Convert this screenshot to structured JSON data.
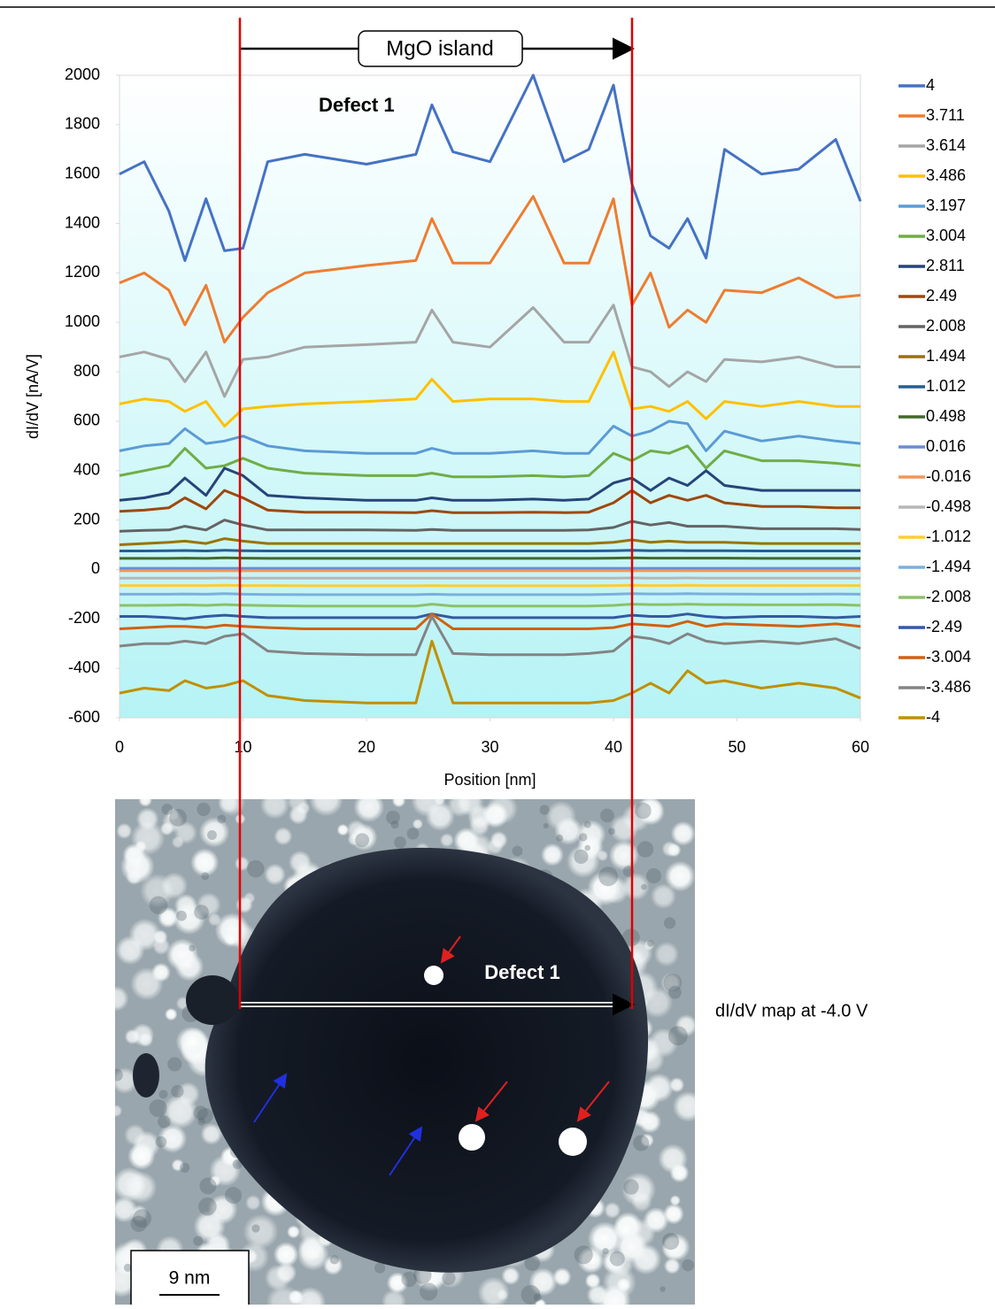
{
  "chart_data": {
    "type": "line",
    "x_label": "Position [nm]",
    "y_label": "dI/dV [nA/V]",
    "annotations": [
      "MgO island",
      "Defect 1"
    ],
    "xlim": [
      0,
      60
    ],
    "xticks": [
      0,
      10,
      20,
      30,
      40,
      50,
      60
    ],
    "ylim": [
      -600,
      2000
    ],
    "yticks": [
      -600,
      -400,
      -200,
      0,
      200,
      400,
      600,
      800,
      1000,
      1200,
      1400,
      1600,
      1800,
      2000
    ],
    "legend": "right",
    "x": [
      0,
      2,
      4,
      5.3,
      7,
      8.5,
      10,
      12,
      15,
      20,
      24,
      25.3,
      27,
      30,
      33.5,
      36,
      38,
      40,
      41.5,
      43,
      44.5,
      46,
      47.5,
      49,
      52,
      55,
      58,
      60
    ],
    "series": [
      {
        "name": "4",
        "color": "#4472c4",
        "values": [
          1600,
          1650,
          1450,
          1250,
          1500,
          1290,
          1300,
          1650,
          1680,
          1640,
          1680,
          1880,
          1690,
          1650,
          2000,
          1650,
          1700,
          1960,
          1560,
          1350,
          1300,
          1420,
          1260,
          1700,
          1600,
          1620,
          1740,
          1490
        ]
      },
      {
        "name": "3.711",
        "color": "#ed7d31",
        "values": [
          1160,
          1200,
          1130,
          990,
          1150,
          920,
          1020,
          1120,
          1200,
          1230,
          1250,
          1420,
          1240,
          1240,
          1510,
          1240,
          1240,
          1500,
          1070,
          1200,
          980,
          1050,
          1000,
          1130,
          1120,
          1180,
          1100,
          1110
        ]
      },
      {
        "name": "3.614",
        "color": "#a5a5a5",
        "values": [
          860,
          880,
          850,
          760,
          880,
          700,
          850,
          860,
          900,
          910,
          920,
          1050,
          920,
          900,
          1060,
          920,
          920,
          1070,
          820,
          800,
          740,
          800,
          760,
          850,
          840,
          860,
          820,
          820
        ]
      },
      {
        "name": "3.486",
        "color": "#ffc000",
        "values": [
          670,
          690,
          680,
          640,
          680,
          580,
          650,
          660,
          670,
          680,
          690,
          770,
          680,
          690,
          690,
          680,
          680,
          880,
          650,
          660,
          640,
          680,
          610,
          680,
          660,
          680,
          660,
          660
        ]
      },
      {
        "name": "3.197",
        "color": "#5b9bd5",
        "values": [
          480,
          500,
          510,
          570,
          510,
          520,
          540,
          500,
          480,
          470,
          470,
          490,
          470,
          470,
          480,
          470,
          470,
          580,
          540,
          560,
          600,
          590,
          480,
          560,
          520,
          540,
          520,
          510
        ]
      },
      {
        "name": "3.004",
        "color": "#70ad47",
        "values": [
          380,
          400,
          420,
          490,
          410,
          420,
          450,
          410,
          390,
          380,
          380,
          390,
          375,
          375,
          380,
          375,
          380,
          470,
          440,
          480,
          470,
          500,
          410,
          480,
          440,
          440,
          430,
          420
        ]
      },
      {
        "name": "2.811",
        "color": "#264478",
        "values": [
          280,
          290,
          310,
          370,
          300,
          410,
          380,
          300,
          290,
          280,
          280,
          290,
          280,
          280,
          285,
          280,
          285,
          350,
          370,
          320,
          370,
          340,
          400,
          340,
          320,
          320,
          320,
          320
        ]
      },
      {
        "name": "2.49",
        "color": "#9e480e",
        "values": [
          235,
          240,
          250,
          290,
          245,
          320,
          290,
          240,
          232,
          232,
          230,
          238,
          230,
          230,
          232,
          230,
          232,
          270,
          320,
          270,
          300,
          280,
          300,
          270,
          255,
          255,
          250,
          250
        ]
      },
      {
        "name": "2.008",
        "color": "#636363",
        "values": [
          155,
          158,
          160,
          175,
          160,
          200,
          180,
          160,
          160,
          160,
          158,
          162,
          158,
          158,
          158,
          158,
          160,
          170,
          195,
          180,
          190,
          175,
          175,
          175,
          165,
          165,
          165,
          162
        ]
      },
      {
        "name": "1.494",
        "color": "#997300",
        "values": [
          100,
          105,
          110,
          115,
          105,
          125,
          115,
          105,
          105,
          105,
          105,
          105,
          105,
          105,
          105,
          105,
          105,
          110,
          120,
          110,
          115,
          110,
          110,
          110,
          105,
          105,
          105,
          105
        ]
      },
      {
        "name": "1.012",
        "color": "#255e91",
        "values": [
          75,
          75,
          76,
          77,
          75,
          78,
          76,
          75,
          75,
          75,
          75,
          75,
          75,
          75,
          75,
          75,
          75,
          76,
          78,
          76,
          77,
          76,
          76,
          76,
          75,
          75,
          75,
          75
        ]
      },
      {
        "name": "0.498",
        "color": "#43682b",
        "values": [
          45,
          45,
          45,
          46,
          45,
          47,
          46,
          45,
          45,
          45,
          45,
          45,
          45,
          45,
          45,
          45,
          45,
          46,
          47,
          46,
          46,
          46,
          46,
          46,
          45,
          45,
          45,
          45
        ]
      },
      {
        "name": "0.016",
        "color": "#698ed0",
        "values": [
          5,
          5,
          5,
          5,
          5,
          5,
          5,
          5,
          5,
          5,
          5,
          5,
          5,
          5,
          5,
          5,
          5,
          5,
          5,
          5,
          5,
          5,
          5,
          5,
          5,
          5,
          5,
          5
        ]
      },
      {
        "name": "-0.016",
        "color": "#f1975a",
        "values": [
          -5,
          -5,
          -5,
          -5,
          -5,
          -5,
          -5,
          -5,
          -5,
          -5,
          -5,
          -5,
          -5,
          -5,
          -5,
          -5,
          -5,
          -5,
          -5,
          -5,
          -5,
          -5,
          -5,
          -5,
          -5,
          -5,
          -5,
          -5
        ]
      },
      {
        "name": "-0.498",
        "color": "#b7b7b7",
        "values": [
          -35,
          -35,
          -35,
          -35,
          -35,
          -34,
          -35,
          -35,
          -35,
          -35,
          -35,
          -35,
          -35,
          -35,
          -35,
          -35,
          -35,
          -35,
          -34,
          -35,
          -35,
          -34,
          -35,
          -35,
          -35,
          -35,
          -35,
          -35
        ]
      },
      {
        "name": "-1.012",
        "color": "#ffcd33",
        "values": [
          -65,
          -65,
          -65,
          -65,
          -65,
          -64,
          -65,
          -65,
          -66,
          -66,
          -66,
          -65,
          -66,
          -66,
          -66,
          -66,
          -66,
          -65,
          -64,
          -65,
          -65,
          -64,
          -65,
          -65,
          -65,
          -65,
          -65,
          -65
        ]
      },
      {
        "name": "-1.494",
        "color": "#7cafdd",
        "values": [
          -100,
          -100,
          -100,
          -99,
          -100,
          -98,
          -100,
          -101,
          -102,
          -102,
          -102,
          -100,
          -102,
          -102,
          -102,
          -102,
          -102,
          -100,
          -98,
          -99,
          -99,
          -98,
          -99,
          -99,
          -100,
          -100,
          -99,
          -100
        ]
      },
      {
        "name": "-2.008",
        "color": "#8cc168",
        "values": [
          -145,
          -145,
          -144,
          -143,
          -145,
          -142,
          -144,
          -146,
          -148,
          -148,
          -148,
          -140,
          -148,
          -148,
          -148,
          -148,
          -148,
          -145,
          -140,
          -142,
          -142,
          -140,
          -142,
          -142,
          -143,
          -143,
          -142,
          -145
        ]
      },
      {
        "name": "-2.49",
        "color": "#335aa1",
        "values": [
          -190,
          -190,
          -195,
          -200,
          -190,
          -185,
          -190,
          -195,
          -195,
          -195,
          -195,
          -180,
          -195,
          -195,
          -195,
          -195,
          -195,
          -195,
          -185,
          -190,
          -190,
          -180,
          -190,
          -195,
          -190,
          -190,
          -195,
          -190
        ]
      },
      {
        "name": "-3.004",
        "color": "#d26012",
        "values": [
          -240,
          -235,
          -230,
          -230,
          -235,
          -225,
          -230,
          -235,
          -240,
          -240,
          -240,
          -180,
          -240,
          -240,
          -240,
          -240,
          -240,
          -235,
          -220,
          -225,
          -230,
          -210,
          -230,
          -220,
          -225,
          -230,
          -220,
          -230
        ]
      },
      {
        "name": "-3.486",
        "color": "#848484",
        "values": [
          -310,
          -300,
          -300,
          -290,
          -300,
          -270,
          -260,
          -330,
          -340,
          -345,
          -345,
          -190,
          -340,
          -345,
          -345,
          -345,
          -340,
          -330,
          -270,
          -280,
          -300,
          -260,
          -290,
          -300,
          -290,
          -300,
          -280,
          -320
        ]
      },
      {
        "name": "-4",
        "color": "#bf9000",
        "values": [
          -500,
          -480,
          -490,
          -450,
          -480,
          -470,
          -450,
          -510,
          -530,
          -540,
          -540,
          -290,
          -540,
          -540,
          -540,
          -540,
          -540,
          -530,
          -500,
          -460,
          -500,
          -410,
          -460,
          -450,
          -480,
          -460,
          -480,
          -520
        ]
      }
    ]
  },
  "image_panel": {
    "defect_label": "Defect 1",
    "caption": "dI/dV map at -4.0 V",
    "scale_bar": "9 nm"
  }
}
